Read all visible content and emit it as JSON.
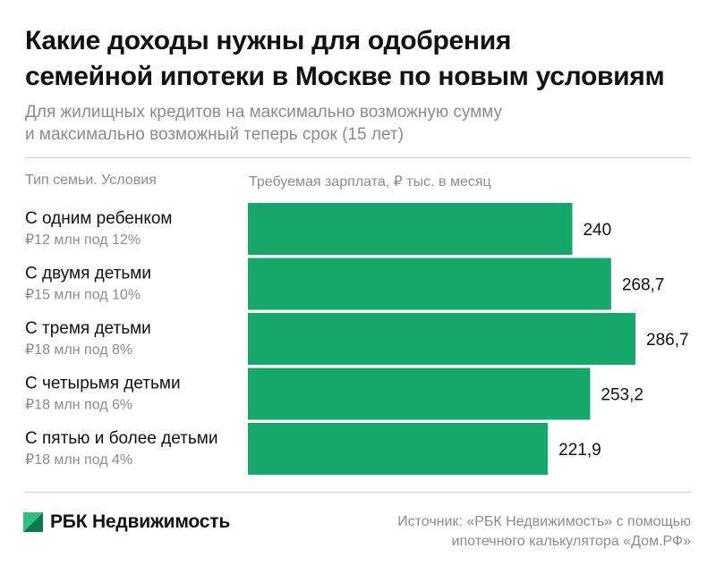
{
  "title_line1": "Какие доходы нужны для одобрения",
  "title_line2": "семейной ипотеки в Москве по новым условиям",
  "subtitle_line1": "Для жилищных кредитов на максимально возможную сумму",
  "subtitle_line2": "и максимально возможный теперь срок (15 лет)",
  "column_left_header": "Тип семьи. Условия",
  "column_right_header": "Требуемая зарплата, ₽ тыс. в месяц",
  "brand": "РБК Недвижимость",
  "source_line1": "Источник: «РБК Недвижимость» с помощью",
  "source_line2": "ипотечного калькулятора «Дом.РФ»",
  "colors": {
    "bar": "#16a86a",
    "logo_light": "#2fbf7b",
    "logo_dark": "#0b7a4b"
  },
  "chart_data": {
    "type": "bar",
    "orientation": "horizontal",
    "categories": [
      "С одним ребенком",
      "С двумя детьми",
      "С тремя детьми",
      "С четырьмя детьми",
      "С пятью и более детьми"
    ],
    "category_sublabels": [
      "₽12 млн под 12%",
      "₽15 млн под 10%",
      "₽18 млн под 8%",
      "₽18 млн под 6%",
      "₽18 млн под 4%"
    ],
    "values": [
      240,
      268.7,
      286.7,
      253.2,
      221.9
    ],
    "value_labels": [
      "240",
      "268,7",
      "286,7",
      "253,2",
      "221,9"
    ],
    "xlim": [
      0,
      286.7
    ],
    "grid": false,
    "legend": "none"
  }
}
